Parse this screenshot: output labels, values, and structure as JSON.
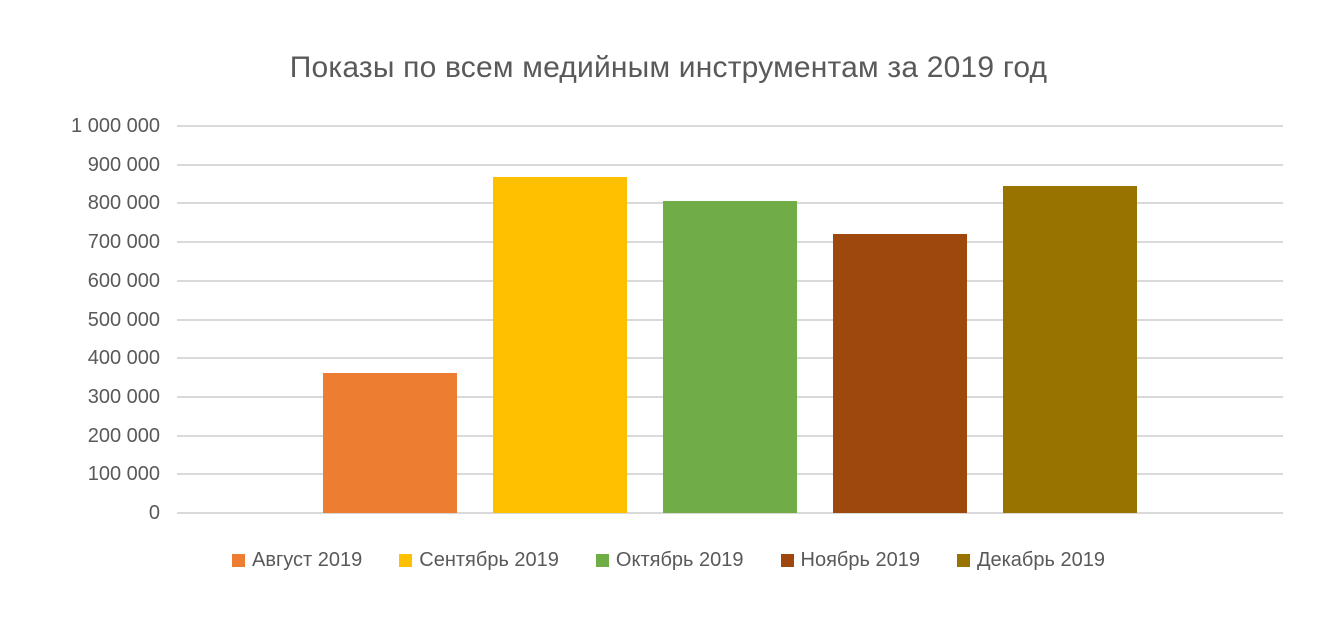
{
  "chart": {
    "title": "Показы по всем медийным инструментам за 2019 год"
  },
  "chart_data": {
    "type": "bar",
    "title": "Показы по всем медийным инструментам за 2019 год",
    "categories": [
      "Август 2019",
      "Сентябрь 2019",
      "Октябрь 2019",
      "Ноябрь 2019",
      "Декабрь 2019"
    ],
    "values": [
      361000,
      868000,
      807000,
      721000,
      845000
    ],
    "colors": [
      "#ED7D31",
      "#FFC000",
      "#70AD47",
      "#9E480E",
      "#997300"
    ],
    "xlabel": "",
    "ylabel": "",
    "ylim": [
      0,
      1000000
    ],
    "ytick_step": 100000,
    "ytick_labels": [
      "0",
      "100 000",
      "200 000",
      "300 000",
      "400 000",
      "500 000",
      "600 000",
      "700 000",
      "800 000",
      "900 000",
      "1 000 000"
    ],
    "grid": true,
    "legend_position": "bottom",
    "legend_entries": [
      "Август 2019",
      "Сентябрь 2019",
      "Октябрь 2019",
      "Ноябрь 2019",
      "Декабрь 2019"
    ]
  },
  "style": {
    "text_color": "#595959",
    "gridline_color": "#D9D9D9",
    "background_color": "#FFFFFF"
  }
}
